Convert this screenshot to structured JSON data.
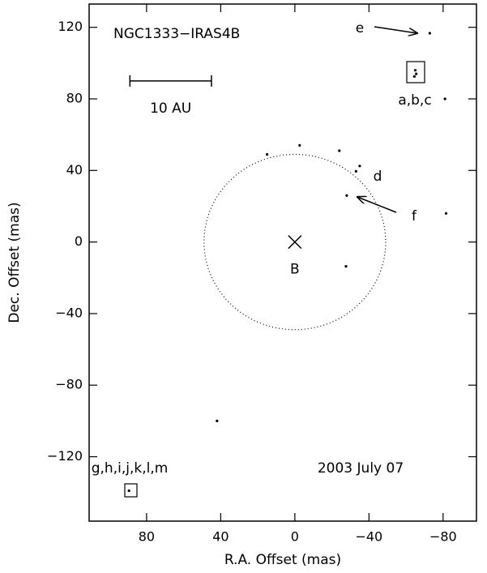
{
  "chart_data": {
    "type": "scatter",
    "title": "NGC1333−IRAS4B",
    "xlabel": "R.A. Offset (mas)",
    "ylabel": "Dec. Offset (mas)",
    "xlim": [
      111,
      -98
    ],
    "ylim": [
      -156,
      133
    ],
    "xticks": [
      80,
      40,
      0,
      {
        "value": -40,
        "label": "−40"
      },
      {
        "value": -80,
        "label": "−80"
      }
    ],
    "yticks": [
      120,
      80,
      40,
      0,
      {
        "value": -40,
        "label": "−40"
      },
      {
        "value": -80,
        "label": "−80"
      },
      {
        "value": -120,
        "label": "−120"
      }
    ],
    "series": [
      {
        "color": "#000000",
        "x": [
          -72.8,
          -65,
          -65.5,
          -64.5,
          -81,
          -33,
          -35,
          -28,
          -2.6,
          15,
          -24,
          -81.6,
          -27.6,
          42,
          89.5
        ],
        "y": [
          116.7,
          96,
          94,
          92.5,
          80,
          39.5,
          42.5,
          26,
          54,
          49,
          51,
          16,
          -13.6,
          -100,
          -139
        ]
      }
    ],
    "center": {
      "label": "B",
      "x": 0,
      "y": 0
    },
    "ring": {
      "x": 0,
      "y": 0,
      "r": 49
    },
    "scale_bar": {
      "label": "10 AU",
      "x": [
        89,
        45
      ],
      "y": 90
    },
    "annotations": [
      "e",
      "a,b,c",
      "d",
      "f",
      "g,h,i,j,k,l,m",
      "2003 July 07"
    ]
  }
}
